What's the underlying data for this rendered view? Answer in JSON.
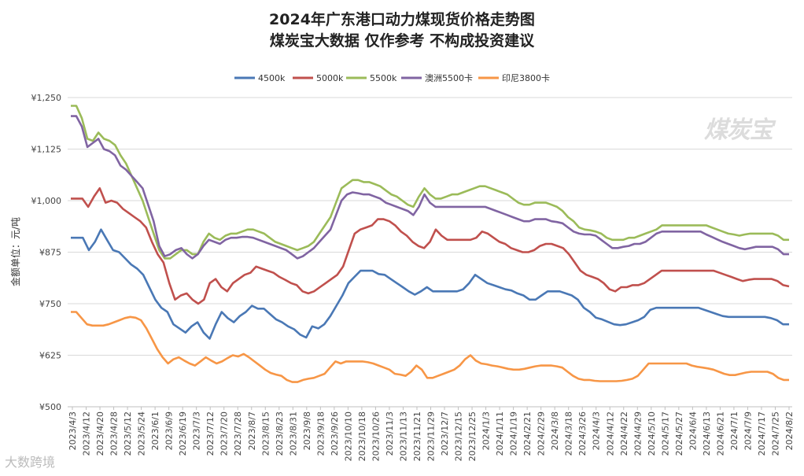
{
  "title_line1": "2024年广东港口动力煤现货价格走势图",
  "title_line2": "煤炭宝大数据 仅作参考 不构成投资建议",
  "watermark": "煤炭宝",
  "bottom_watermark": "大数跨境",
  "chart_data": {
    "type": "line",
    "title": "2024年广东港口动力煤现货价格走势图",
    "ylabel": "金额单位：元/吨",
    "xlabel": "",
    "ylim": [
      500,
      1250
    ],
    "yticks": [
      500,
      625,
      750,
      875,
      1000,
      1125,
      1250
    ],
    "ytick_labels": [
      "¥500",
      "¥625",
      "¥750",
      "¥875",
      "¥1,000",
      "¥1,125",
      "¥1,250"
    ],
    "legend_position": "top-center",
    "grid": true,
    "x_labels": [
      "2023/4/3",
      "2023/4/12",
      "2023/4/20",
      "2023/4/28",
      "2023/5/12",
      "2023/5/24",
      "2023/6/1",
      "2023/6/9",
      "2023/6/19",
      "2023/7/3",
      "2023/7/12",
      "2023/7/20",
      "2023/7/28",
      "2023/8/7",
      "2023/8/15",
      "2023/8/23",
      "2023/8/31",
      "2023/9/8",
      "2023/9/18",
      "2023/9/26",
      "2023/10/10",
      "2023/10/18",
      "2023/10/26",
      "2023/11/3",
      "2023/11/13",
      "2023/11/21",
      "2023/11/29",
      "2023/12/7",
      "2023/12/15",
      "2023/12/25",
      "2024/1/3",
      "2024/1/11",
      "2024/1/19",
      "2024/2/21",
      "2024/2/29",
      "2024/3/8",
      "2024/3/18",
      "2024/3/26",
      "2024/4/3",
      "2024/4/12",
      "2024/4/22",
      "2024/4/29",
      "2024/5/10",
      "2024/5/17",
      "2024/5/27",
      "2024/6/4",
      "2024/6/13",
      "2024/6/21",
      "2024/7/1",
      "2024/7/9",
      "2024/7/17",
      "2024/7/25",
      "2024/8/2"
    ],
    "series": [
      {
        "name": "4500k",
        "color": "#4a78b5",
        "values": [
          910,
          910,
          910,
          880,
          900,
          930,
          905,
          880,
          875,
          860,
          845,
          835,
          820,
          790,
          760,
          740,
          730,
          700,
          690,
          680,
          695,
          705,
          680,
          665,
          700,
          730,
          715,
          705,
          720,
          730,
          745,
          738,
          738,
          725,
          712,
          705,
          695,
          688,
          675,
          668,
          695,
          690,
          700,
          720,
          745,
          770,
          800,
          815,
          830,
          830,
          830,
          822,
          820,
          810,
          800,
          790,
          780,
          772,
          780,
          790,
          780,
          780,
          780,
          780,
          780,
          785,
          800,
          820,
          810,
          800,
          795,
          790,
          785,
          782,
          775,
          770,
          760,
          760,
          770,
          780,
          780,
          780,
          775,
          770,
          760,
          740,
          730,
          716,
          712,
          706,
          700,
          698,
          700,
          705,
          710,
          718,
          735,
          740,
          740,
          740,
          740,
          740,
          740,
          740,
          740,
          735,
          730,
          725,
          720,
          718,
          718,
          718,
          718,
          718,
          718,
          718,
          715,
          710,
          700,
          700
        ]
      },
      {
        "name": "5000k",
        "color": "#c0504d",
        "values": [
          1005,
          1005,
          1005,
          985,
          1010,
          1030,
          995,
          1000,
          995,
          980,
          970,
          960,
          950,
          935,
          900,
          870,
          850,
          800,
          760,
          770,
          775,
          760,
          750,
          760,
          800,
          810,
          790,
          780,
          800,
          810,
          820,
          825,
          840,
          835,
          830,
          825,
          815,
          808,
          800,
          795,
          780,
          775,
          780,
          790,
          800,
          810,
          820,
          840,
          880,
          920,
          930,
          935,
          940,
          955,
          955,
          950,
          940,
          925,
          915,
          900,
          890,
          885,
          900,
          930,
          915,
          905,
          905,
          905,
          905,
          905,
          910,
          925,
          920,
          910,
          900,
          895,
          885,
          880,
          875,
          875,
          880,
          890,
          895,
          895,
          890,
          885,
          870,
          850,
          830,
          820,
          815,
          810,
          800,
          785,
          780,
          790,
          790,
          795,
          795,
          800,
          810,
          820,
          830,
          830,
          830,
          830,
          830,
          830,
          830,
          830,
          830,
          830,
          825,
          820,
          815,
          810,
          805,
          808,
          810,
          810,
          810,
          810,
          805,
          795,
          792
        ]
      },
      {
        "name": "5500k",
        "color": "#9bbb59",
        "values": [
          1230,
          1230,
          1200,
          1150,
          1145,
          1165,
          1150,
          1145,
          1135,
          1110,
          1090,
          1060,
          1030,
          1000,
          960,
          920,
          880,
          860,
          860,
          870,
          880,
          880,
          870,
          870,
          900,
          920,
          910,
          905,
          915,
          920,
          920,
          925,
          930,
          930,
          925,
          920,
          910,
          900,
          895,
          890,
          885,
          880,
          885,
          890,
          900,
          920,
          940,
          960,
          995,
          1030,
          1040,
          1050,
          1050,
          1045,
          1045,
          1040,
          1035,
          1025,
          1015,
          1010,
          1000,
          990,
          985,
          1010,
          1030,
          1015,
          1005,
          1005,
          1010,
          1015,
          1015,
          1020,
          1025,
          1030,
          1035,
          1035,
          1030,
          1025,
          1020,
          1015,
          1005,
          995,
          990,
          990,
          995,
          995,
          995,
          990,
          985,
          975,
          960,
          950,
          935,
          930,
          928,
          925,
          920,
          910,
          905,
          905,
          905,
          910,
          910,
          915,
          920,
          925,
          930,
          940,
          940,
          940,
          940,
          940,
          940,
          940,
          940,
          940,
          935,
          930,
          925,
          920,
          918,
          915,
          918,
          920,
          920,
          920,
          920,
          920,
          915,
          905,
          905
        ]
      },
      {
        "name": "澳洲5500卡",
        "color": "#8064a2",
        "values": [
          1205,
          1205,
          1180,
          1130,
          1140,
          1150,
          1125,
          1120,
          1110,
          1085,
          1075,
          1060,
          1045,
          1030,
          990,
          950,
          890,
          865,
          870,
          880,
          885,
          870,
          860,
          870,
          890,
          905,
          900,
          895,
          905,
          910,
          910,
          912,
          912,
          910,
          905,
          900,
          895,
          890,
          885,
          880,
          870,
          860,
          865,
          875,
          885,
          900,
          915,
          930,
          965,
          1000,
          1015,
          1020,
          1018,
          1015,
          1015,
          1010,
          1005,
          995,
          990,
          985,
          980,
          975,
          965,
          985,
          1015,
          995,
          985,
          985,
          985,
          985,
          985,
          985,
          985,
          985,
          985,
          985,
          980,
          975,
          970,
          965,
          960,
          955,
          950,
          950,
          955,
          955,
          955,
          950,
          948,
          945,
          935,
          925,
          920,
          918,
          918,
          915,
          905,
          895,
          885,
          885,
          888,
          890,
          895,
          895,
          900,
          910,
          920,
          925,
          925,
          925,
          925,
          925,
          925,
          925,
          925,
          918,
          912,
          906,
          900,
          895,
          890,
          885,
          882,
          885,
          888,
          888,
          888,
          888,
          882,
          870,
          870
        ]
      },
      {
        "name": "印尼3800卡",
        "color": "#f79646",
        "values": [
          730,
          730,
          715,
          700,
          697,
          697,
          697,
          700,
          705,
          710,
          715,
          718,
          716,
          710,
          690,
          665,
          640,
          620,
          605,
          615,
          620,
          612,
          605,
          600,
          610,
          620,
          612,
          605,
          610,
          618,
          625,
          622,
          628,
          620,
          610,
          600,
          590,
          582,
          578,
          575,
          565,
          560,
          560,
          565,
          568,
          570,
          575,
          580,
          595,
          610,
          605,
          610,
          610,
          610,
          610,
          608,
          605,
          600,
          595,
          590,
          580,
          578,
          575,
          585,
          600,
          590,
          570,
          570,
          575,
          580,
          585,
          590,
          600,
          615,
          625,
          612,
          605,
          603,
          600,
          598,
          595,
          592,
          590,
          590,
          592,
          595,
          598,
          600,
          600,
          600,
          598,
          595,
          585,
          575,
          568,
          565,
          565,
          563,
          562,
          562,
          562,
          562,
          563,
          565,
          568,
          575,
          590,
          605,
          605,
          605,
          605,
          605,
          605,
          605,
          605,
          600,
          597,
          595,
          593,
          590,
          585,
          580,
          577,
          577,
          580,
          583,
          585,
          585,
          585,
          585,
          580,
          570,
          565,
          565
        ]
      }
    ]
  }
}
